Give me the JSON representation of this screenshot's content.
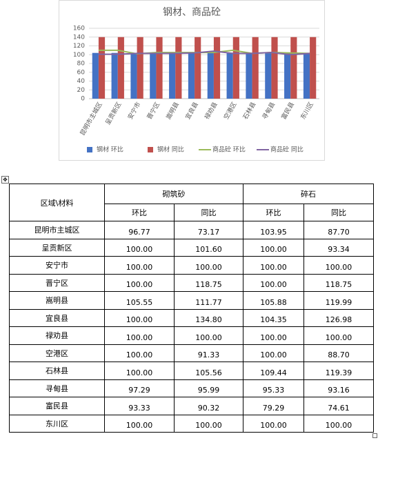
{
  "chart_data": {
    "type": "bar-line",
    "title": "钢材、商品砼",
    "categories": [
      "昆明市主城区",
      "呈贡新区",
      "安宁市",
      "晋宁区",
      "嵩明县",
      "宜良县",
      "禄劝县",
      "空港区",
      "石林县",
      "寻甸县",
      "富民县",
      "东川区"
    ],
    "series": [
      {
        "name": "钢材 环比",
        "type": "bar",
        "color": "#4472c4",
        "values": [
          104,
          104,
          104,
          104,
          104,
          104,
          104,
          104,
          104,
          104,
          104,
          104
        ]
      },
      {
        "name": "钢材 同比",
        "type": "bar",
        "color": "#c0504d",
        "values": [
          140,
          140,
          140,
          140,
          140,
          140,
          140,
          140,
          140,
          140,
          140,
          140
        ]
      },
      {
        "name": "商品砼 环比",
        "type": "line",
        "color": "#9bbb59",
        "values": [
          110,
          110,
          102,
          105,
          105,
          105,
          105,
          110,
          103,
          105,
          104,
          103
        ]
      },
      {
        "name": "商品砼 同比",
        "type": "line",
        "color": "#8064a2",
        "values": [
          101,
          101,
          103,
          103,
          103,
          104,
          108,
          103,
          103,
          105,
          100,
          103
        ]
      }
    ],
    "ylim": [
      0,
      160
    ],
    "yticks": [
      0,
      20,
      40,
      60,
      80,
      100,
      120,
      140,
      160
    ],
    "grid": true,
    "legend": "bottom"
  },
  "table": {
    "header": [
      "区域\\材料",
      "砌筑砂",
      "碎石"
    ],
    "subheader": [
      "环比",
      "同比",
      "环比",
      "同比"
    ],
    "rows": [
      [
        "昆明市主城区",
        "96.77",
        "73.17",
        "103.95",
        "87.70"
      ],
      [
        "呈贡新区",
        "100.00",
        "101.60",
        "100.00",
        "93.34"
      ],
      [
        "安宁市",
        "100.00",
        "100.00",
        "100.00",
        "100.00"
      ],
      [
        "晋宁区",
        "100.00",
        "118.75",
        "100.00",
        "118.75"
      ],
      [
        "嵩明县",
        "105.55",
        "111.77",
        "105.88",
        "119.99"
      ],
      [
        "宜良县",
        "100.00",
        "134.80",
        "104.35",
        "126.98"
      ],
      [
        "禄劝县",
        "100.00",
        "100.00",
        "100.00",
        "100.00"
      ],
      [
        "空港区",
        "100.00",
        "91.33",
        "100.00",
        "88.70"
      ],
      [
        "石林县",
        "100.00",
        "105.56",
        "109.44",
        "119.39"
      ],
      [
        "寻甸县",
        "97.29",
        "95.99",
        "95.33",
        "93.16"
      ],
      [
        "富民县",
        "93.33",
        "90.32",
        "79.29",
        "74.61"
      ],
      [
        "东川区",
        "100.00",
        "100.00",
        "100.00",
        "100.00"
      ]
    ]
  }
}
